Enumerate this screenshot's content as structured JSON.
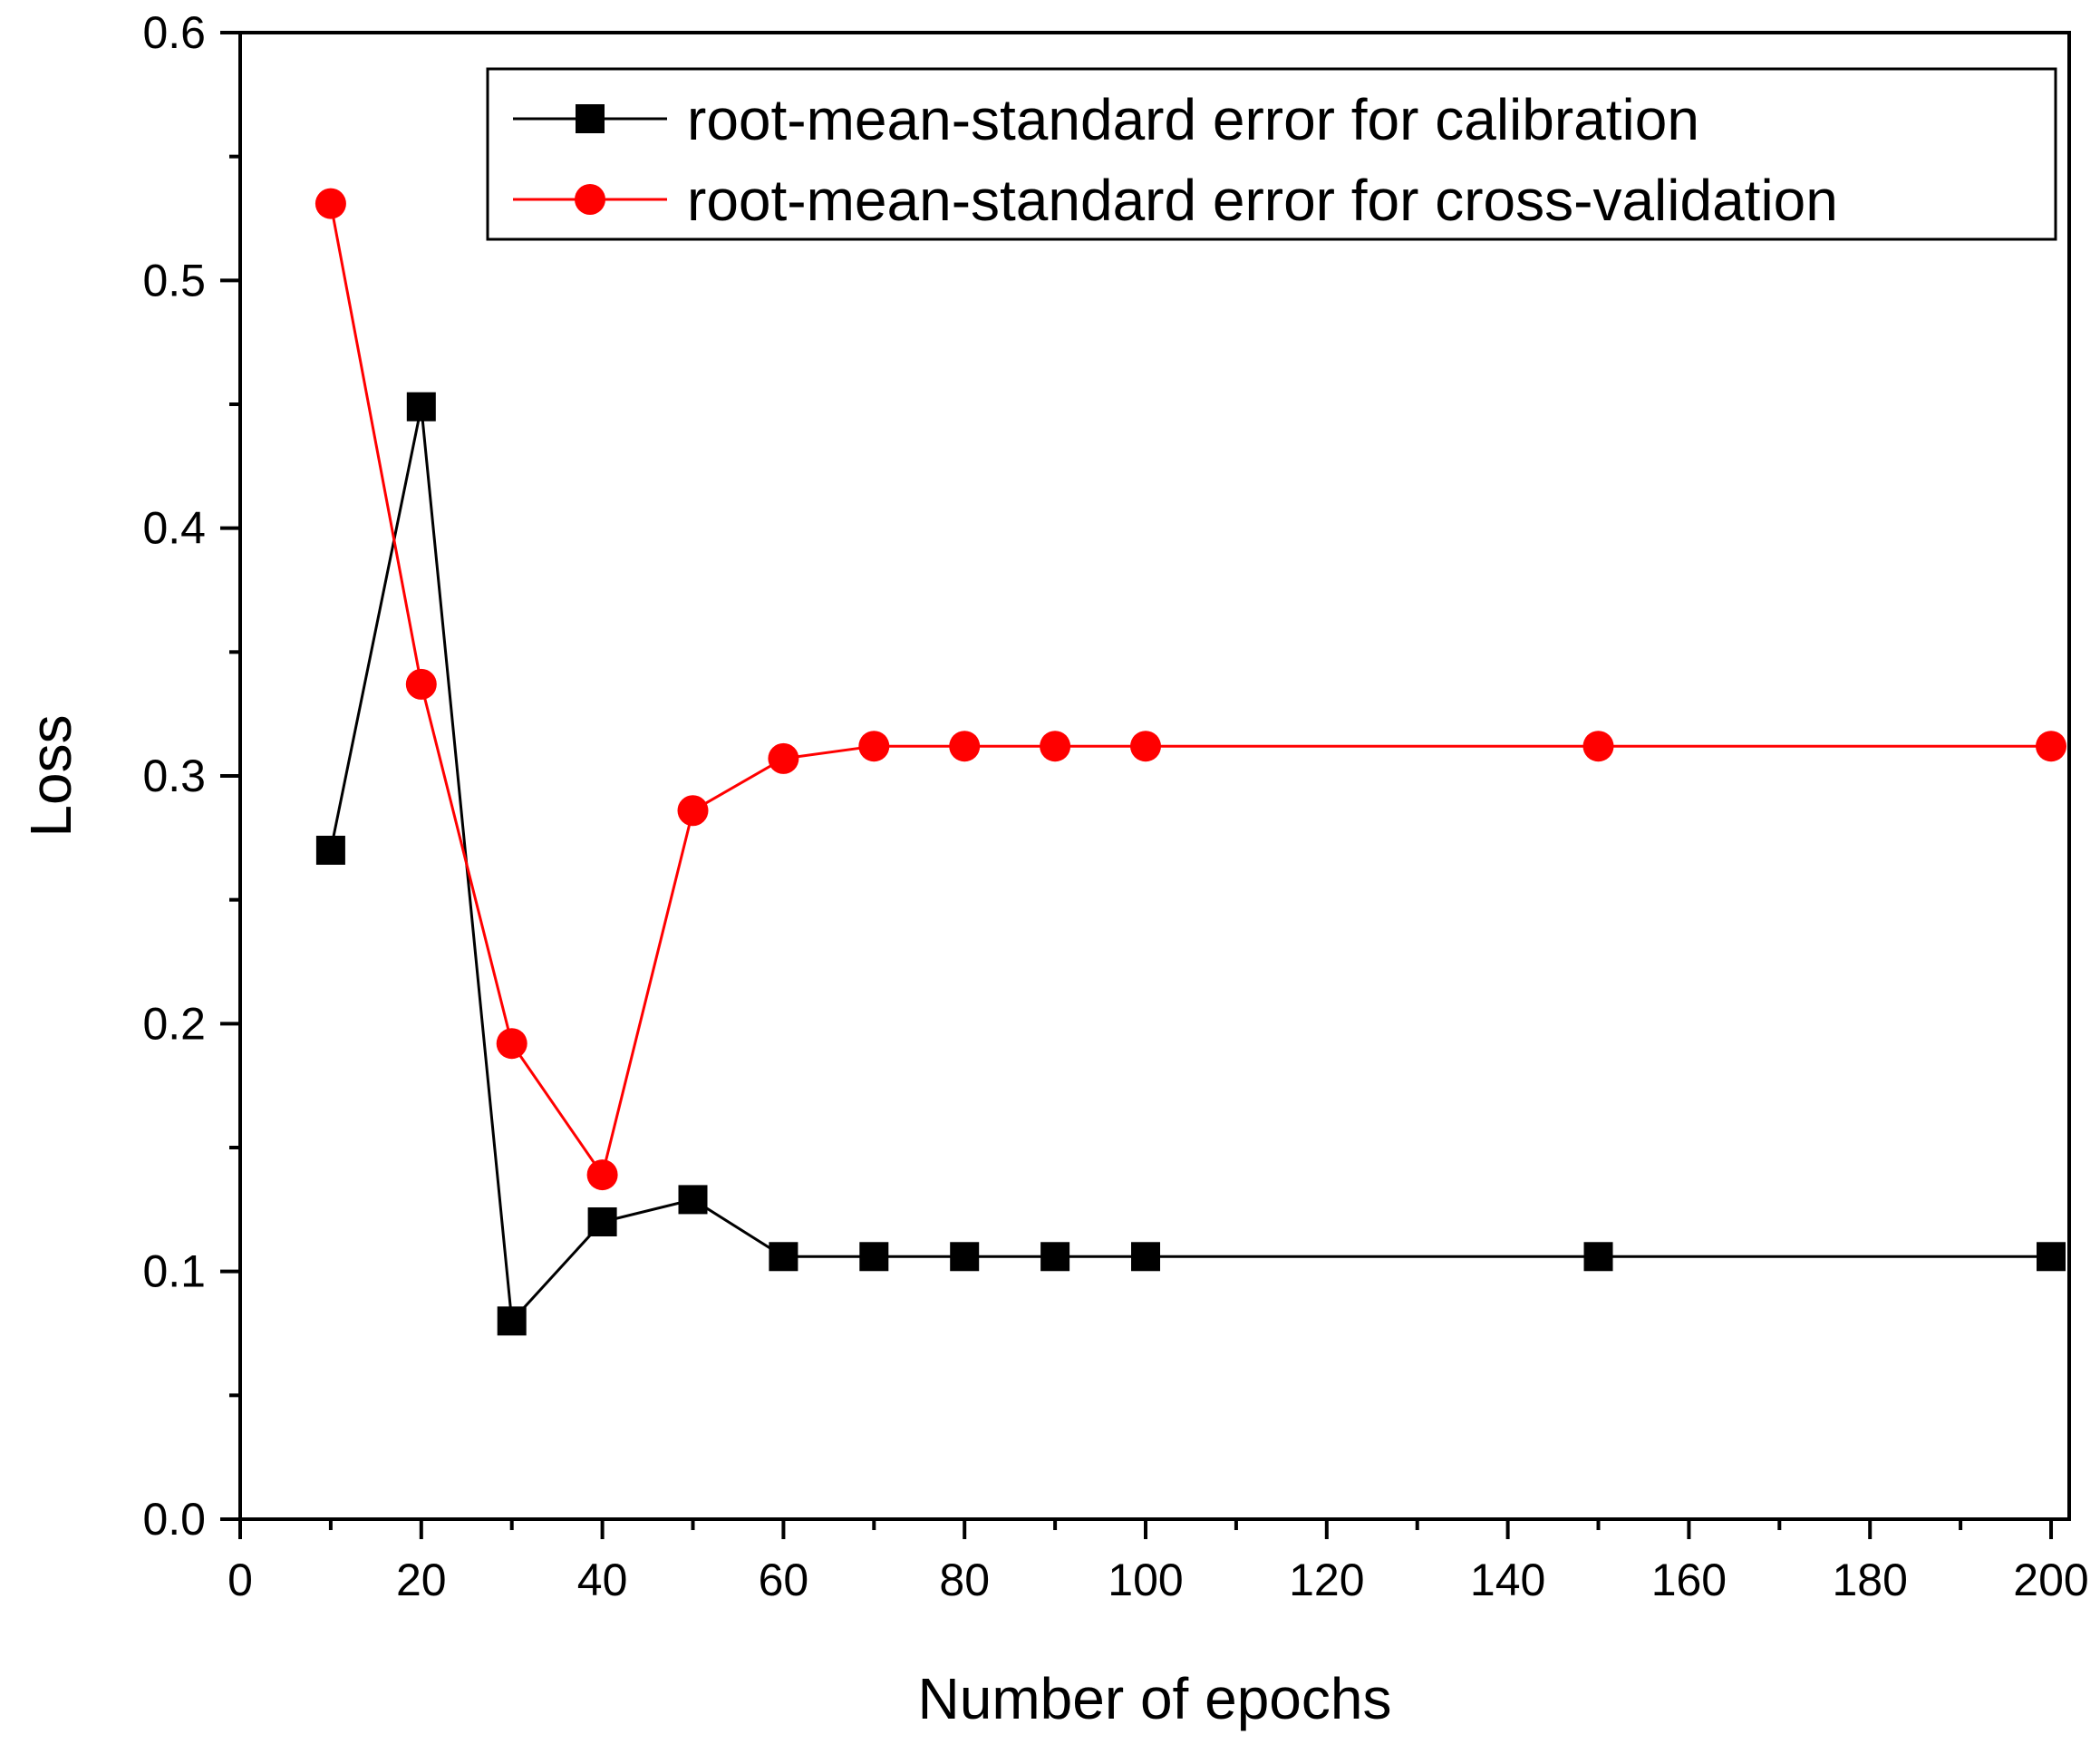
{
  "chart_data": {
    "type": "line",
    "xlabel": "Number of epochs",
    "ylabel": "Loss",
    "xlim": [
      0,
      202
    ],
    "ylim": [
      0,
      0.6
    ],
    "x_ticks": [
      "0",
      "20",
      "40",
      "60",
      "80",
      "100",
      "120",
      "140",
      "160",
      "180",
      "200"
    ],
    "y_ticks": [
      "0.0",
      "0.1",
      "0.2",
      "0.3",
      "0.4",
      "0.5",
      "0.6"
    ],
    "grid": false,
    "legend_position": "top-right",
    "x": [
      10,
      20,
      30,
      40,
      50,
      60,
      70,
      80,
      90,
      100,
      150,
      200
    ],
    "series": [
      {
        "name": "root-mean-standard error for calibration",
        "color": "#000000",
        "marker": "square",
        "values": [
          0.27,
          0.449,
          0.08,
          0.12,
          0.129,
          0.106,
          0.106,
          0.106,
          0.106,
          0.106,
          0.106,
          0.106
        ]
      },
      {
        "name": "root-mean-standard error for cross-validation",
        "color": "#ff0000",
        "marker": "circle",
        "values": [
          0.531,
          0.337,
          0.192,
          0.139,
          0.286,
          0.307,
          0.312,
          0.312,
          0.312,
          0.312,
          0.312,
          0.312
        ]
      }
    ]
  }
}
